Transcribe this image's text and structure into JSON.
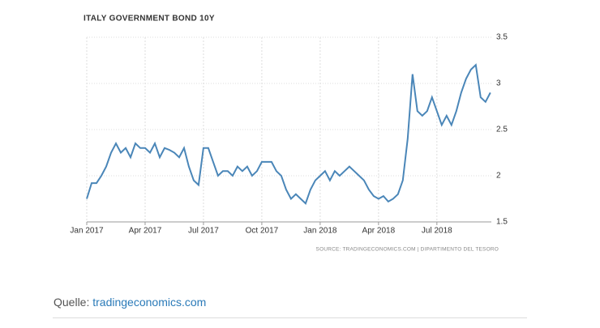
{
  "chart_data": {
    "type": "line",
    "title": "ITALY GOVERNMENT BOND 10Y",
    "source": "SOURCE: TRADINGECONOMICS.COM | DIPARTIMENTO DEL TESORO",
    "x": [
      0,
      0.25,
      0.5,
      0.75,
      1,
      1.25,
      1.5,
      1.75,
      2,
      2.25,
      2.5,
      2.75,
      3,
      3.25,
      3.5,
      3.75,
      4,
      4.25,
      4.5,
      4.75,
      5,
      5.25,
      5.5,
      5.75,
      6,
      6.25,
      6.5,
      6.75,
      7,
      7.25,
      7.5,
      7.75,
      8,
      8.25,
      8.5,
      8.75,
      9,
      9.25,
      9.5,
      9.75,
      10,
      10.25,
      10.5,
      10.75,
      11,
      11.25,
      11.5,
      11.75,
      12,
      12.25,
      12.5,
      12.75,
      13,
      13.25,
      13.5,
      13.75,
      14,
      14.25,
      14.5,
      14.75,
      15,
      15.25,
      15.5,
      15.75,
      16,
      16.25,
      16.5,
      16.75,
      17,
      17.25,
      17.5,
      17.75,
      18,
      18.25,
      18.5,
      18.75,
      19,
      19.25,
      19.5,
      19.75,
      20,
      20.25,
      20.5,
      20.75
    ],
    "series": [
      {
        "color": "#4a86b8",
        "values": [
          1.75,
          1.92,
          1.92,
          2.0,
          2.1,
          2.25,
          2.35,
          2.25,
          2.3,
          2.2,
          2.35,
          2.3,
          2.3,
          2.25,
          2.35,
          2.2,
          2.3,
          2.28,
          2.25,
          2.2,
          2.3,
          2.1,
          1.95,
          1.9,
          2.3,
          2.3,
          2.15,
          2.0,
          2.05,
          2.05,
          2.0,
          2.1,
          2.05,
          2.1,
          2.0,
          2.05,
          2.15,
          2.15,
          2.15,
          2.05,
          2.0,
          1.85,
          1.75,
          1.8,
          1.75,
          1.7,
          1.85,
          1.95,
          2.0,
          2.05,
          1.95,
          2.05,
          2.0,
          2.05,
          2.1,
          2.05,
          2.0,
          1.95,
          1.85,
          1.78,
          1.75,
          1.78,
          1.72,
          1.75,
          1.8,
          1.95,
          2.4,
          3.1,
          2.7,
          2.65,
          2.7,
          2.85,
          2.7,
          2.55,
          2.65,
          2.55,
          2.7,
          2.9,
          3.05,
          3.15,
          3.2,
          2.85,
          2.8,
          2.9
        ]
      }
    ],
    "xlim": [
      0,
      20.8
    ],
    "xticks": [
      {
        "value": 0,
        "label": "Jan 2017"
      },
      {
        "value": 3,
        "label": "Apr 2017"
      },
      {
        "value": 6,
        "label": "Jul 2017"
      },
      {
        "value": 9,
        "label": "Oct 2017"
      },
      {
        "value": 12,
        "label": "Jan 2018"
      },
      {
        "value": 15,
        "label": "Apr 2018"
      },
      {
        "value": 18,
        "label": "Jul 2018"
      }
    ],
    "ylim": [
      1.5,
      3.5
    ],
    "yticks": [
      3.5,
      3,
      2.5,
      2,
      1.5
    ],
    "grid": true
  },
  "caption": {
    "label": "Quelle:",
    "link": "tradingeconomics.com"
  }
}
